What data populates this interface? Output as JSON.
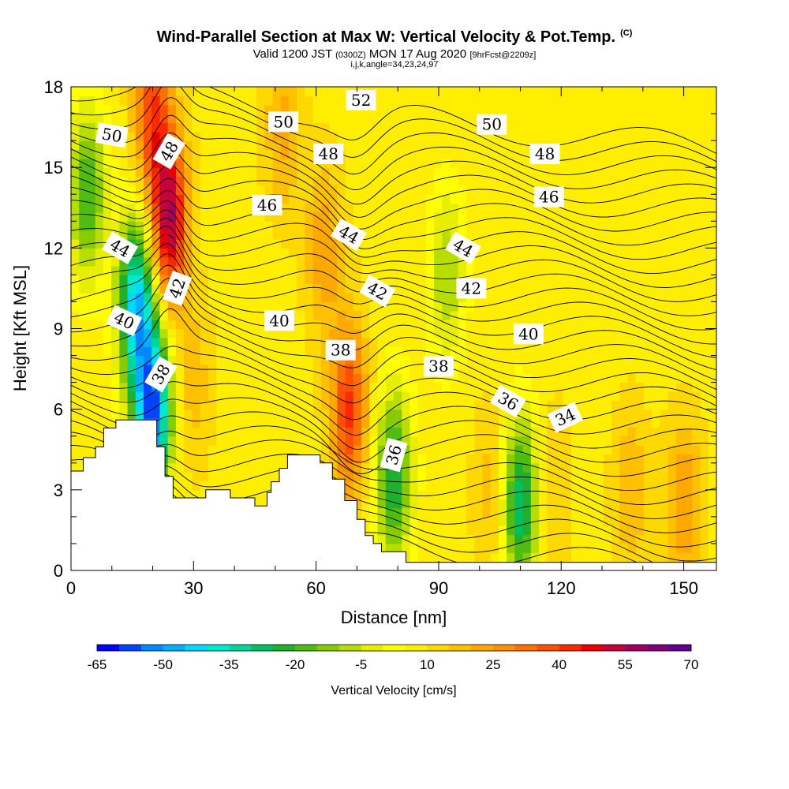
{
  "header": {
    "title": "Wind-Parallel Section at Max W: Vertical Velocity & Pot.Temp.",
    "copyright": "(C)",
    "valid_prefix": "Valid 1200 JST",
    "valid_utc": "(0300Z)",
    "valid_date": "MON 17 Aug 2020",
    "forecast": "[9hrFcst@2209z]",
    "grid_info": "i,j,k,angle=34,23,24,97"
  },
  "chart_data": {
    "type": "heatmap",
    "title": "Wind-Parallel Section at Max W: Vertical Velocity & Pot.Temp.",
    "xlabel": "Distance [nm]",
    "ylabel": "Height [Kft MSL]",
    "xlim": [
      0,
      158
    ],
    "ylim": [
      0,
      18
    ],
    "x_ticks": [
      "0",
      "30",
      "60",
      "90",
      "120",
      "150"
    ],
    "x_tick_values": [
      0,
      30,
      60,
      90,
      120,
      150
    ],
    "y_ticks": [
      "0",
      "3",
      "6",
      "9",
      "12",
      "15",
      "18"
    ],
    "y_tick_values": [
      0,
      3,
      6,
      9,
      12,
      15,
      18
    ],
    "colorbar": {
      "label": "Vertical Velocity [cm/s]",
      "tick_labels": [
        "-65",
        "-50",
        "-35",
        "-20",
        "-5",
        "10",
        "25",
        "40",
        "55",
        "70"
      ],
      "tick_values": [
        -65,
        -50,
        -35,
        -20,
        -5,
        10,
        25,
        40,
        55,
        70
      ],
      "colors": [
        "#0000ff",
        "#0044ff",
        "#0088ff",
        "#00b0ff",
        "#00d8ff",
        "#00e8d0",
        "#00d898",
        "#00c060",
        "#20b030",
        "#50bb10",
        "#88cc00",
        "#b8dd00",
        "#e8ee00",
        "#ffff00",
        "#ffee00",
        "#ffd800",
        "#ffc000",
        "#ffa800",
        "#ff9000",
        "#ff7000",
        "#ff5000",
        "#ff2800",
        "#e80000",
        "#c8003c",
        "#a00060",
        "#80007c",
        "#600090"
      ]
    },
    "vertical_velocity": {
      "units": "cm/s",
      "background": 8,
      "features": [
        {
          "x": 24,
          "y": 13,
          "value": 55
        },
        {
          "x": 20,
          "y": 17,
          "value": 38
        },
        {
          "x": 16,
          "y": 10,
          "value": -42
        },
        {
          "x": 20,
          "y": 6,
          "value": -55
        },
        {
          "x": 68,
          "y": 6,
          "value": 42
        },
        {
          "x": 62,
          "y": 12,
          "value": 24
        },
        {
          "x": 52,
          "y": 16.5,
          "value": 22
        },
        {
          "x": 30,
          "y": 7,
          "value": 18
        },
        {
          "x": 4,
          "y": 14,
          "value": -20
        },
        {
          "x": 110,
          "y": 2.5,
          "value": -30
        },
        {
          "x": 79,
          "y": 3.5,
          "value": -25
        },
        {
          "x": 92,
          "y": 11,
          "value": -10
        },
        {
          "x": 150,
          "y": 2.5,
          "value": 25
        },
        {
          "x": 137,
          "y": 3,
          "value": 20
        },
        {
          "x": 118,
          "y": 3,
          "value": 16
        },
        {
          "x": 103,
          "y": 3,
          "value": 18
        }
      ]
    },
    "theta_contours": {
      "units": "deg F (potential temperature, labels as printed)",
      "labels": [
        "34",
        "36",
        "36",
        "38",
        "38",
        "38",
        "40",
        "40",
        "40",
        "42",
        "42",
        "42",
        "44",
        "44",
        "44",
        "46",
        "46",
        "48",
        "48",
        "48",
        "50",
        "50",
        "50",
        "52"
      ]
    },
    "terrain": {
      "description": "Terrain cross-section (white, stepped)",
      "profile_x": [
        0,
        3,
        3,
        6,
        6,
        8,
        8,
        11,
        11,
        13,
        13,
        21,
        21,
        23,
        23,
        25,
        25,
        28,
        28,
        30,
        30,
        33,
        33,
        39,
        39,
        42,
        42,
        45,
        45,
        48,
        48,
        49,
        49,
        51,
        51,
        53,
        53,
        55,
        55,
        61,
        61,
        64,
        64,
        67,
        67,
        70,
        70,
        72,
        72,
        74,
        74,
        76,
        76,
        78,
        78,
        82,
        82,
        84,
        84,
        158
      ],
      "profile_y": [
        3.7,
        3.7,
        4.2,
        4.2,
        4.6,
        4.6,
        5.3,
        5.3,
        5.6,
        5.6,
        5.6,
        5.6,
        4.6,
        4.6,
        3.5,
        3.5,
        2.7,
        2.7,
        2.7,
        2.7,
        2.7,
        2.7,
        3.0,
        3.0,
        2.7,
        2.7,
        2.7,
        2.7,
        2.4,
        2.4,
        2.9,
        2.9,
        3.3,
        3.3,
        3.8,
        3.8,
        4.3,
        4.3,
        4.3,
        4.3,
        4.0,
        4.0,
        3.4,
        3.4,
        2.6,
        2.6,
        1.9,
        1.9,
        1.3,
        1.3,
        1.0,
        1.0,
        0.7,
        0.7,
        0.7,
        0.7,
        0.3,
        0.3,
        0.3,
        0.3
      ]
    }
  }
}
